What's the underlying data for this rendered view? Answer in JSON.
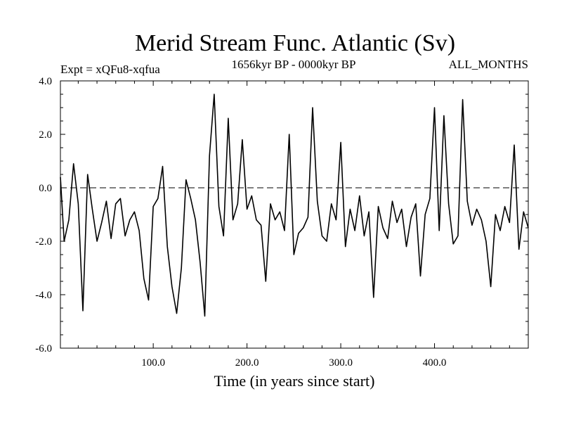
{
  "chart_data": {
    "type": "line",
    "title": "Merid Stream Func. Atlantic (Sv)",
    "subtitle_left": "Expt = xQFu8-xqfua",
    "subtitle_center": "1656kyr BP - 0000kyr BP",
    "subtitle_right": "ALL_MONTHS",
    "xlabel": "Time (in years since start)",
    "ylabel": "",
    "xlim": [
      1,
      500
    ],
    "ylim": [
      -6.0,
      4.0
    ],
    "xticks": [
      100,
      200,
      300,
      400
    ],
    "xtick_labels": [
      "100.0",
      "200.0",
      "300.0",
      "400.0"
    ],
    "yticks": [
      4.0,
      2.0,
      0.0,
      -2.0,
      -4.0,
      -6.0
    ],
    "ytick_labels": [
      "4.0",
      "2.0",
      "0.0",
      "-2.0",
      "-4.0",
      "-6.0"
    ],
    "reference_line": {
      "y": 0.0,
      "style": "dashed"
    },
    "grid": false,
    "series": [
      {
        "name": "Merid Stream Func. Atlantic",
        "x": [
          1,
          5,
          10,
          15,
          20,
          25,
          30,
          35,
          40,
          45,
          50,
          55,
          60,
          65,
          70,
          75,
          80,
          85,
          90,
          95,
          100,
          105,
          110,
          115,
          120,
          125,
          130,
          135,
          140,
          145,
          150,
          155,
          160,
          165,
          170,
          175,
          180,
          185,
          190,
          195,
          200,
          205,
          210,
          215,
          220,
          225,
          230,
          235,
          240,
          245,
          250,
          255,
          260,
          265,
          270,
          275,
          280,
          285,
          290,
          295,
          300,
          305,
          310,
          315,
          320,
          325,
          330,
          335,
          340,
          345,
          350,
          355,
          360,
          365,
          370,
          375,
          380,
          385,
          390,
          395,
          400,
          405,
          410,
          415,
          420,
          425,
          430,
          435,
          440,
          445,
          450,
          455,
          460,
          465,
          470,
          475,
          480,
          485,
          490,
          495,
          500
        ],
        "values": [
          0.4,
          -2.0,
          -1.2,
          0.9,
          -0.6,
          -4.6,
          0.5,
          -0.8,
          -2.0,
          -1.3,
          -0.5,
          -1.9,
          -0.6,
          -0.4,
          -1.8,
          -1.2,
          -0.9,
          -1.6,
          -3.4,
          -4.2,
          -0.7,
          -0.4,
          0.8,
          -2.2,
          -3.7,
          -4.7,
          -3.0,
          0.3,
          -0.4,
          -1.2,
          -2.8,
          -4.8,
          1.2,
          3.5,
          -0.7,
          -1.8,
          2.6,
          -1.2,
          -0.6,
          1.8,
          -0.8,
          -0.3,
          -1.2,
          -1.4,
          -3.5,
          -0.6,
          -1.2,
          -0.9,
          -1.6,
          2.0,
          -2.5,
          -1.7,
          -1.5,
          -1.1,
          3.0,
          -0.5,
          -1.8,
          -2.0,
          -0.6,
          -1.2,
          1.7,
          -2.2,
          -0.8,
          -1.6,
          -0.3,
          -1.8,
          -0.9,
          -4.1,
          -0.7,
          -1.5,
          -1.9,
          -0.5,
          -1.3,
          -0.8,
          -2.2,
          -1.1,
          -0.6,
          -3.3,
          -1.0,
          -0.4,
          3.0,
          -1.6,
          2.7,
          -0.6,
          -2.1,
          -1.8,
          3.3,
          -0.5,
          -1.4,
          -0.8,
          -1.2,
          -2.0,
          -3.7,
          -1.0,
          -1.6,
          -0.7,
          -1.3,
          1.6,
          -2.3,
          -0.9,
          -1.5
        ]
      }
    ]
  }
}
